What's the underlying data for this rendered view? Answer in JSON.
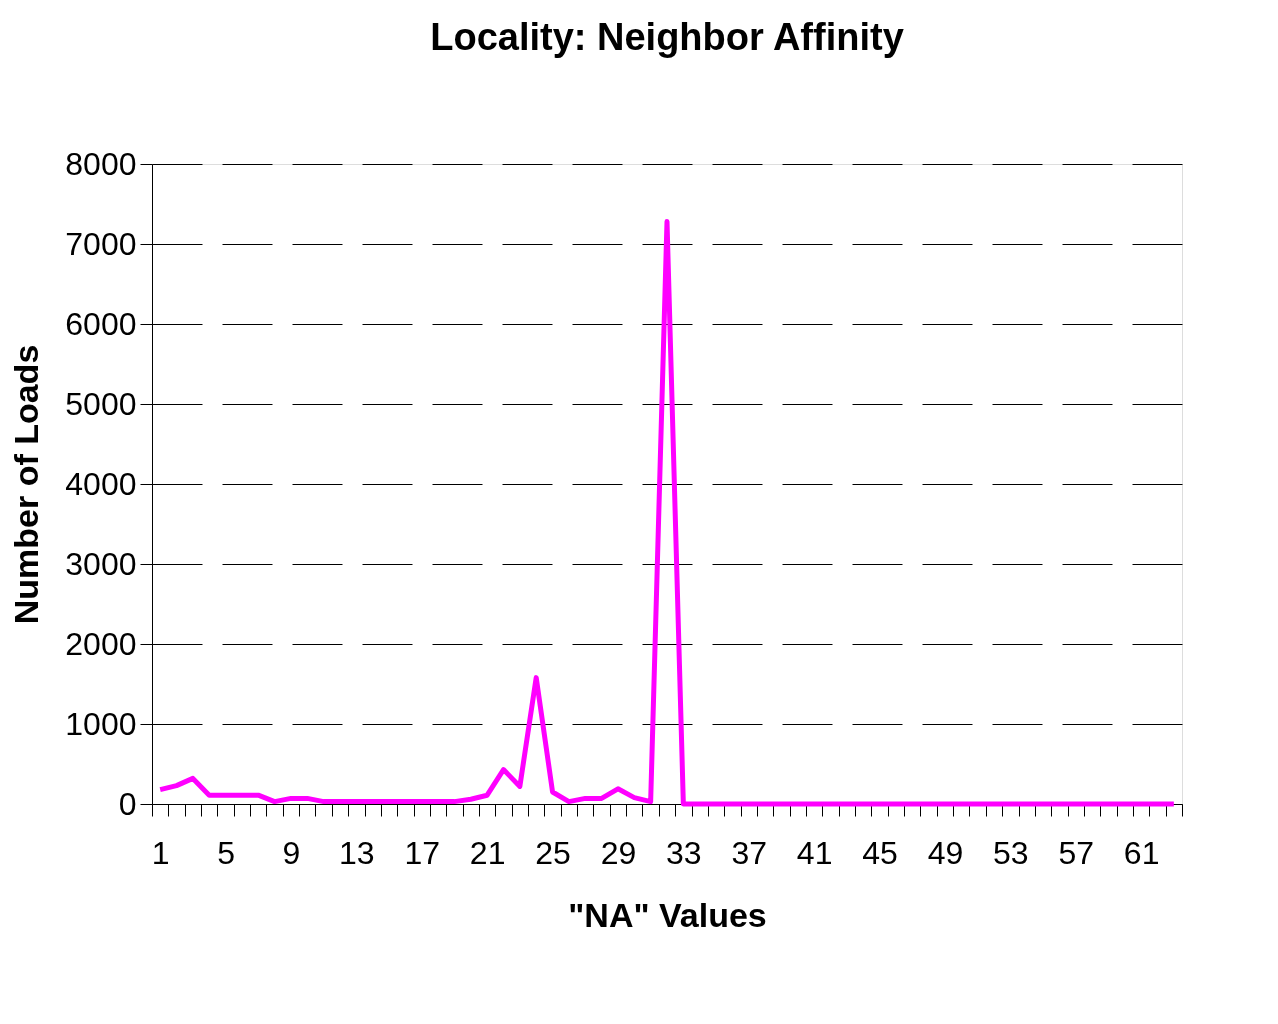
{
  "chart_data": {
    "type": "line",
    "title": "Locality: Neighbor Affinity",
    "xlabel": "\"NA\" Values",
    "ylabel": "Number of Loads",
    "categories": [
      "1",
      null,
      null,
      null,
      "5",
      null,
      null,
      null,
      "9",
      null,
      null,
      null,
      "13",
      null,
      null,
      null,
      "17",
      null,
      null,
      null,
      "21",
      null,
      null,
      null,
      "25",
      null,
      null,
      null,
      "29",
      null,
      null,
      null,
      "33",
      null,
      null,
      null,
      "37",
      null,
      null,
      null,
      "41",
      null,
      null,
      null,
      "45",
      null,
      null,
      null,
      "49",
      null,
      null,
      null,
      "53",
      null,
      null,
      null,
      "57",
      null,
      null,
      null,
      "61",
      null,
      null
    ],
    "series": [
      {
        "color": "#ff00ff",
        "values": [
          180,
          230,
          320,
          110,
          110,
          110,
          110,
          30,
          70,
          70,
          30,
          30,
          30,
          30,
          30,
          30,
          30,
          30,
          30,
          60,
          110,
          430,
          220,
          1580,
          150,
          30,
          70,
          70,
          190,
          80,
          30,
          7280,
          0,
          0,
          0,
          0,
          0,
          0,
          0,
          0,
          0,
          0,
          0,
          0,
          0,
          0,
          0,
          0,
          0,
          0,
          0,
          0,
          0,
          0,
          0,
          0,
          0,
          0,
          0,
          0,
          0,
          0,
          0
        ]
      }
    ],
    "ylim": [
      0,
      8000
    ],
    "yticks": [
      0,
      1000,
      2000,
      3000,
      4000,
      5000,
      6000,
      7000,
      8000
    ],
    "grid": "y",
    "marker": "none",
    "line_style": "solid"
  }
}
